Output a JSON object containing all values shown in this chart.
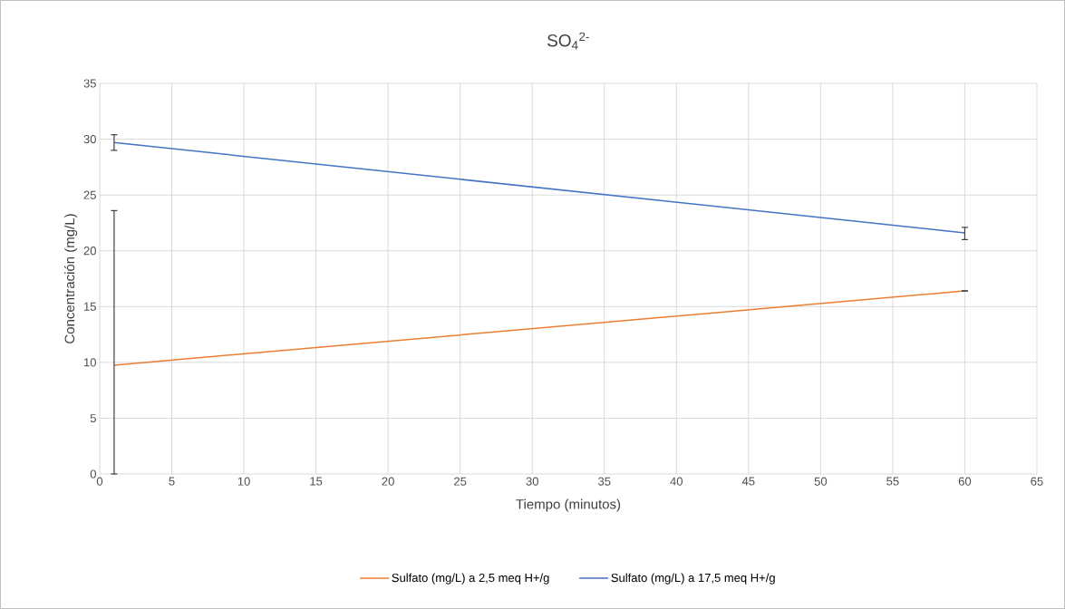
{
  "chart_data": {
    "type": "line",
    "title": "SO$_{4}$$^{2-}$",
    "xlabel": "Tiempo (minutos)",
    "ylabel": "Concentración (mg/L)",
    "x": [
      1,
      60
    ],
    "series": [
      {
        "name": "Sulfato (mg/L) a 2,5 meq H+/g",
        "color": "#ed7d31",
        "values": [
          9.75,
          16.4
        ],
        "errors": [
          [
            0,
            23.6
          ],
          [
            16.4,
            16.4
          ]
        ]
      },
      {
        "name": "Sulfato (mg/L) a 17,5 meq H+/g",
        "color": "#4472c4",
        "values": [
          29.7,
          21.6
        ],
        "errors": [
          [
            29.0,
            30.4
          ],
          [
            21.0,
            22.1
          ]
        ]
      }
    ],
    "xlim": [
      0,
      65
    ],
    "xticks": [
      0,
      5,
      10,
      15,
      20,
      25,
      30,
      35,
      40,
      45,
      50,
      55,
      60,
      65
    ],
    "ylim": [
      0,
      35
    ],
    "yticks": [
      0,
      5,
      10,
      15,
      20,
      25,
      30,
      35
    ],
    "grid": true,
    "legend": "bottom",
    "marker": "none",
    "line_style": "solid"
  }
}
